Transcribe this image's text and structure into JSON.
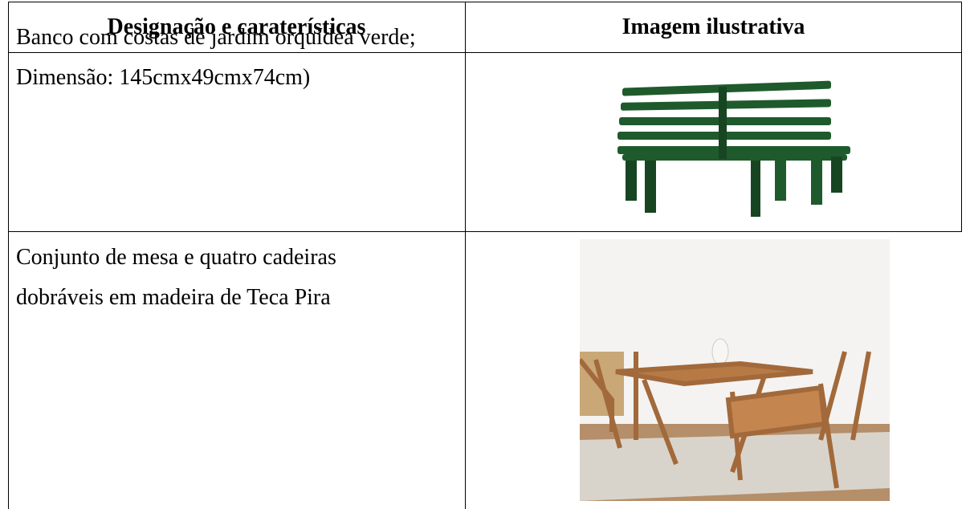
{
  "table": {
    "header": [
      "Designação e caraterísticas",
      "Imagem ilustrativa"
    ],
    "rows": [
      {
        "lines": [
          "Banco com costas de jardim orquídea verde;",
          "Dimensão: 145cmx49cmx74cm)"
        ]
      },
      {
        "lines": [
          "Conjunto de mesa e quatro cadeiras",
          "dobráveis em madeira de Teca Pira"
        ]
      }
    ]
  }
}
